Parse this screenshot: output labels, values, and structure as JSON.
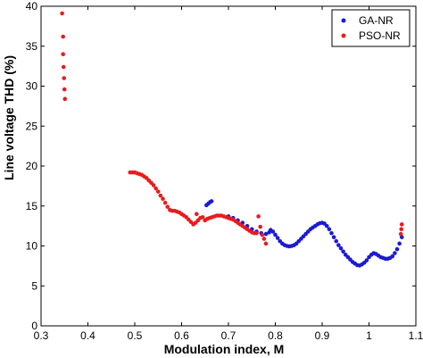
{
  "chart_data": {
    "type": "scatter",
    "title": "",
    "xlabel": "Modulation index, M",
    "ylabel": "Line voltage THD (%)",
    "xlim": [
      0.3,
      1.1
    ],
    "ylim": [
      0,
      40
    ],
    "x_ticks": [
      "0.3",
      "0.4",
      "0.5",
      "0.6",
      "0.7",
      "0.8",
      "0.9",
      "1",
      "1.1"
    ],
    "y_ticks": [
      "0",
      "5",
      "10",
      "15",
      "20",
      "25",
      "30",
      "35",
      "40"
    ],
    "grid": false,
    "legend_position": "top-right",
    "series": [
      {
        "name": "GA-NR",
        "color": "#1a1ad6",
        "points": [
          [
            0.653,
            15.1
          ],
          [
            0.657,
            15.3
          ],
          [
            0.661,
            15.5
          ],
          [
            0.664,
            15.6
          ],
          [
            0.7,
            13.7
          ],
          [
            0.71,
            13.5
          ],
          [
            0.72,
            13.2
          ],
          [
            0.73,
            12.9
          ],
          [
            0.74,
            12.5
          ],
          [
            0.75,
            12.1
          ],
          [
            0.76,
            11.8
          ],
          [
            0.77,
            11.6
          ],
          [
            0.78,
            11.5
          ],
          [
            0.787,
            11.7
          ],
          [
            0.79,
            12.0
          ],
          [
            0.795,
            11.8
          ],
          [
            0.8,
            11.4
          ],
          [
            0.805,
            11.0
          ],
          [
            0.81,
            10.6
          ],
          [
            0.815,
            10.3
          ],
          [
            0.82,
            10.1
          ],
          [
            0.825,
            10.0
          ],
          [
            0.83,
            9.95
          ],
          [
            0.835,
            10.0
          ],
          [
            0.84,
            10.1
          ],
          [
            0.845,
            10.3
          ],
          [
            0.85,
            10.6
          ],
          [
            0.855,
            10.9
          ],
          [
            0.86,
            11.2
          ],
          [
            0.865,
            11.5
          ],
          [
            0.87,
            11.8
          ],
          [
            0.875,
            12.1
          ],
          [
            0.88,
            12.3
          ],
          [
            0.885,
            12.5
          ],
          [
            0.89,
            12.7
          ],
          [
            0.895,
            12.85
          ],
          [
            0.9,
            12.9
          ],
          [
            0.905,
            12.8
          ],
          [
            0.91,
            12.5
          ],
          [
            0.915,
            12.1
          ],
          [
            0.92,
            11.6
          ],
          [
            0.925,
            11.1
          ],
          [
            0.93,
            10.6
          ],
          [
            0.935,
            10.1
          ],
          [
            0.94,
            9.7
          ],
          [
            0.945,
            9.3
          ],
          [
            0.95,
            8.9
          ],
          [
            0.955,
            8.6
          ],
          [
            0.96,
            8.3
          ],
          [
            0.965,
            8.0
          ],
          [
            0.97,
            7.8
          ],
          [
            0.975,
            7.6
          ],
          [
            0.98,
            7.55
          ],
          [
            0.985,
            7.7
          ],
          [
            0.99,
            7.9
          ],
          [
            0.995,
            8.2
          ],
          [
            1.0,
            8.6
          ],
          [
            1.005,
            8.9
          ],
          [
            1.01,
            9.1
          ],
          [
            1.015,
            9.0
          ],
          [
            1.02,
            8.8
          ],
          [
            1.025,
            8.6
          ],
          [
            1.03,
            8.5
          ],
          [
            1.035,
            8.4
          ],
          [
            1.04,
            8.4
          ],
          [
            1.045,
            8.5
          ],
          [
            1.05,
            8.7
          ],
          [
            1.055,
            9.1
          ],
          [
            1.06,
            9.6
          ],
          [
            1.065,
            10.3
          ],
          [
            1.07,
            11.1
          ]
        ]
      },
      {
        "name": "PSO-NR",
        "color": "#e81c1c",
        "points": [
          [
            0.345,
            39.1
          ],
          [
            0.347,
            36.2
          ],
          [
            0.347,
            34.0
          ],
          [
            0.348,
            32.4
          ],
          [
            0.349,
            31.0
          ],
          [
            0.35,
            29.6
          ],
          [
            0.351,
            28.4
          ],
          [
            0.49,
            19.2
          ],
          [
            0.495,
            19.2
          ],
          [
            0.5,
            19.2
          ],
          [
            0.505,
            19.1
          ],
          [
            0.51,
            19.0
          ],
          [
            0.515,
            18.9
          ],
          [
            0.52,
            18.7
          ],
          [
            0.525,
            18.5
          ],
          [
            0.53,
            18.2
          ],
          [
            0.535,
            17.9
          ],
          [
            0.54,
            17.6
          ],
          [
            0.545,
            17.2
          ],
          [
            0.55,
            16.8
          ],
          [
            0.555,
            16.3
          ],
          [
            0.56,
            15.9
          ],
          [
            0.565,
            15.4
          ],
          [
            0.57,
            14.9
          ],
          [
            0.575,
            14.5
          ],
          [
            0.58,
            14.4
          ],
          [
            0.585,
            14.4
          ],
          [
            0.59,
            14.3
          ],
          [
            0.595,
            14.2
          ],
          [
            0.6,
            14.0
          ],
          [
            0.605,
            13.8
          ],
          [
            0.61,
            13.6
          ],
          [
            0.615,
            13.3
          ],
          [
            0.62,
            13.0
          ],
          [
            0.625,
            12.7
          ],
          [
            0.63,
            12.9
          ],
          [
            0.635,
            13.2
          ],
          [
            0.64,
            13.5
          ],
          [
            0.645,
            13.6
          ],
          [
            0.65,
            13.2
          ],
          [
            0.655,
            13.4
          ],
          [
            0.66,
            13.5
          ],
          [
            0.665,
            13.6
          ],
          [
            0.67,
            13.7
          ],
          [
            0.675,
            13.8
          ],
          [
            0.68,
            13.8
          ],
          [
            0.685,
            13.8
          ],
          [
            0.69,
            13.7
          ],
          [
            0.695,
            13.6
          ],
          [
            0.7,
            13.5
          ],
          [
            0.705,
            13.4
          ],
          [
            0.71,
            13.3
          ],
          [
            0.715,
            13.1
          ],
          [
            0.72,
            12.9
          ],
          [
            0.725,
            12.7
          ],
          [
            0.73,
            12.5
          ],
          [
            0.735,
            12.3
          ],
          [
            0.74,
            12.1
          ],
          [
            0.745,
            11.9
          ],
          [
            0.75,
            11.7
          ],
          [
            0.755,
            11.6
          ],
          [
            0.76,
            11.6
          ],
          [
            0.764,
            13.7
          ],
          [
            0.768,
            12.4
          ],
          [
            0.772,
            11.4
          ],
          [
            0.776,
            10.9
          ],
          [
            0.78,
            10.3
          ],
          [
            0.632,
            14.0
          ],
          [
            1.068,
            11.5
          ],
          [
            1.069,
            12.1
          ],
          [
            1.07,
            12.7
          ]
        ]
      }
    ]
  }
}
